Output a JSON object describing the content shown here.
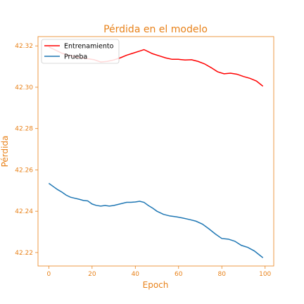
{
  "chart_data": {
    "type": "line",
    "title": "Pérdida en el modelo",
    "xlabel": "Epoch",
    "ylabel": "Pérdida",
    "xlim": [
      -5,
      104
    ],
    "ylim": [
      42.2135,
      42.3245
    ],
    "xticks": [
      0,
      20,
      40,
      60,
      80,
      100
    ],
    "yticks": [
      42.22,
      42.24,
      42.26,
      42.28,
      42.3,
      42.32
    ],
    "ytick_labels": [
      "42.22",
      "42.24",
      "42.26",
      "42.28",
      "42.30",
      "42.32"
    ],
    "xtick_labels": [
      "0",
      "20",
      "40",
      "60",
      "80",
      "100"
    ],
    "grid": false,
    "legend_position": "top-left",
    "axis_color": "#e8821a",
    "series": [
      {
        "name": "Entrenamiento",
        "color": "#ff0000",
        "x": [
          0,
          3,
          6,
          9,
          12,
          15,
          18,
          21,
          24,
          27,
          30,
          33,
          36,
          39,
          42,
          44,
          46,
          48,
          51,
          54,
          57,
          60,
          63,
          66,
          69,
          72,
          75,
          78,
          81,
          84,
          87,
          90,
          93,
          96,
          99
        ],
        "y": [
          42.3195,
          42.318,
          42.3165,
          42.3155,
          42.3148,
          42.3142,
          42.3138,
          42.3133,
          42.3122,
          42.3125,
          42.3132,
          42.3142,
          42.3155,
          42.3165,
          42.3175,
          42.3182,
          42.3172,
          42.3162,
          42.3152,
          42.3142,
          42.3135,
          42.3135,
          42.3132,
          42.3133,
          42.3125,
          42.3113,
          42.3095,
          42.3075,
          42.3065,
          42.3068,
          42.3063,
          42.3052,
          42.3043,
          42.303,
          42.3005
        ]
      },
      {
        "name": "Prueba",
        "color": "#1f77b4",
        "x": [
          0,
          2,
          4,
          6,
          8,
          10,
          12,
          14,
          16,
          18,
          20,
          22,
          24,
          26,
          28,
          30,
          32,
          34,
          36,
          38,
          40,
          42,
          44,
          46,
          48,
          50,
          53,
          56,
          59,
          62,
          65,
          68,
          71,
          74,
          77,
          80,
          83,
          86,
          89,
          92,
          95,
          99
        ],
        "y": [
          42.2535,
          42.252,
          42.2505,
          42.2493,
          42.2478,
          42.2468,
          42.2463,
          42.2458,
          42.2452,
          42.245,
          42.2435,
          42.2428,
          42.2425,
          42.2428,
          42.2425,
          42.2428,
          42.2433,
          42.2438,
          42.2443,
          42.2443,
          42.2445,
          42.2448,
          42.2443,
          42.2428,
          42.2415,
          42.24,
          42.2385,
          42.2377,
          42.2373,
          42.2367,
          42.236,
          42.2352,
          42.2338,
          42.2315,
          42.229,
          42.2268,
          42.2265,
          42.2255,
          42.2235,
          42.2225,
          42.2208,
          42.2175
        ]
      }
    ]
  }
}
